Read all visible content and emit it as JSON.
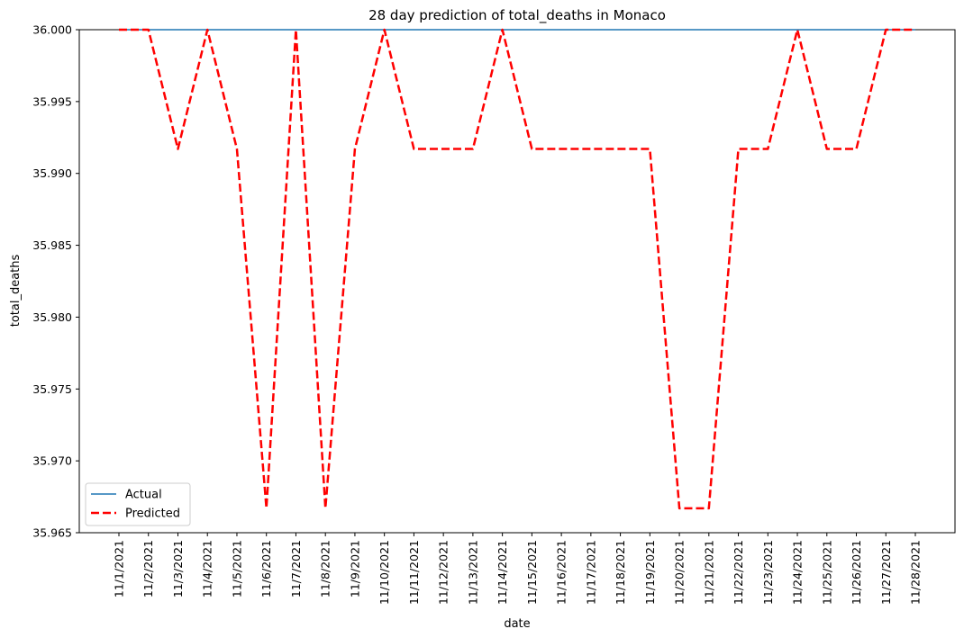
{
  "chart_data": {
    "type": "line",
    "title": "28 day prediction of total_deaths in Monaco",
    "xlabel": "date",
    "ylabel": "total_deaths",
    "x": [
      "11/1/2021",
      "11/2/2021",
      "11/3/2021",
      "11/4/2021",
      "11/5/2021",
      "11/6/2021",
      "11/7/2021",
      "11/8/2021",
      "11/9/2021",
      "11/10/2021",
      "11/11/2021",
      "11/12/2021",
      "11/13/2021",
      "11/14/2021",
      "11/15/2021",
      "11/16/2021",
      "11/17/2021",
      "11/18/2021",
      "11/19/2021",
      "11/20/2021",
      "11/21/2021",
      "11/22/2021",
      "11/23/2021",
      "11/24/2021",
      "11/25/2021",
      "11/26/2021",
      "11/27/2021",
      "11/28/2021"
    ],
    "ylim": [
      35.965,
      36.0
    ],
    "yticks": [
      "35.965",
      "35.970",
      "35.975",
      "35.980",
      "35.985",
      "35.990",
      "35.995",
      "36.000"
    ],
    "grid": false,
    "legend_position": "lower-left",
    "series": [
      {
        "name": "Actual",
        "color": "#1f77b4",
        "style": "solid",
        "values": [
          36.0,
          36.0,
          36.0,
          36.0,
          36.0,
          36.0,
          36.0,
          36.0,
          36.0,
          36.0,
          36.0,
          36.0,
          36.0,
          36.0,
          36.0,
          36.0,
          36.0,
          36.0,
          36.0,
          36.0,
          36.0,
          36.0,
          36.0,
          36.0,
          36.0,
          36.0,
          36.0,
          36.0
        ]
      },
      {
        "name": "Predicted",
        "color": "#ff0000",
        "style": "dashed",
        "values": [
          36.0,
          36.0,
          35.9917,
          36.0,
          35.9917,
          35.9667,
          36.0,
          35.9667,
          35.9917,
          36.0,
          35.9917,
          35.9917,
          35.9917,
          36.0,
          35.9917,
          35.9917,
          35.9917,
          35.9917,
          35.9917,
          35.9667,
          35.9667,
          35.9917,
          35.9917,
          36.0,
          35.9917,
          35.9917,
          36.0,
          36.0
        ]
      }
    ]
  }
}
